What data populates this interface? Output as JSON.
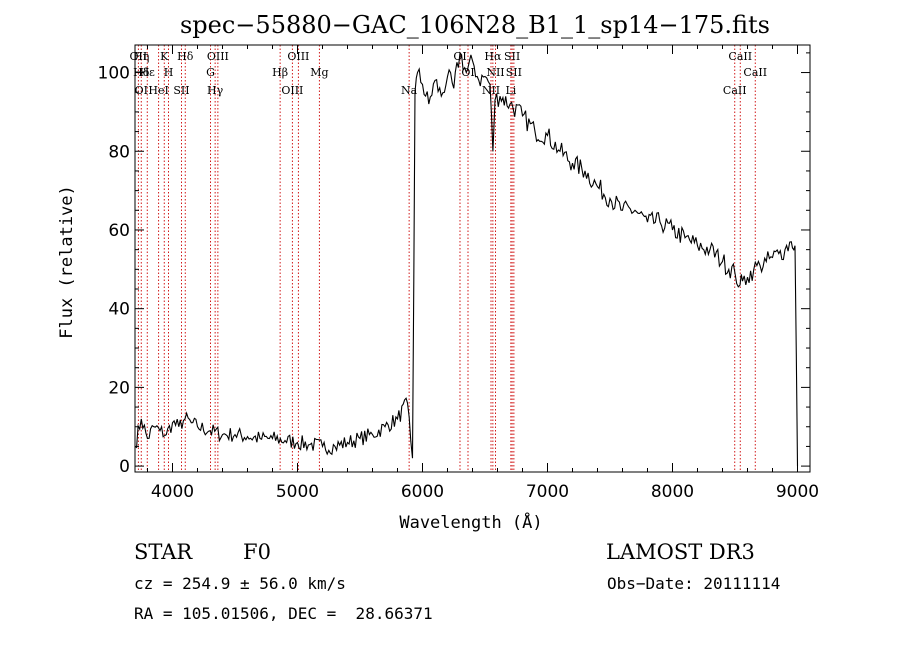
{
  "chart_data": {
    "type": "line",
    "title": "spec−55880−GAC_106N28_B1_1_sp14−175.fits",
    "xlabel": "Wavelength (Å)",
    "ylabel": "Flux (relative)",
    "xlim": [
      3700,
      9100
    ],
    "ylim": [
      -1.5,
      107
    ],
    "xticks": [
      4000,
      5000,
      6000,
      7000,
      8000,
      9000
    ],
    "yticks": [
      0,
      20,
      40,
      60,
      80,
      100
    ],
    "grid": false,
    "line_color": "#000000",
    "marker_color": "#cc0000",
    "series": [
      {
        "x": [
          3700,
          3750,
          3800,
          3850,
          3900,
          3950,
          4000,
          4050,
          4100,
          4150,
          4200,
          4300,
          4400,
          4500,
          4600,
          4700,
          4800,
          4900,
          5000,
          5100,
          5200,
          5300,
          5400,
          5500,
          5600,
          5700,
          5800,
          5880,
          5920,
          5940,
          5960,
          6000,
          6050,
          6100,
          6150,
          6200,
          6250,
          6300,
          6350,
          6400,
          6450,
          6500,
          6540,
          6563,
          6580,
          6620,
          6700,
          6800,
          6900,
          7000,
          7100,
          7200,
          7300,
          7400,
          7500,
          7600,
          7700,
          7800,
          7900,
          8000,
          8100,
          8200,
          8300,
          8400,
          8500,
          8540,
          8560,
          8600,
          8650,
          8700,
          8750,
          8800,
          8850,
          8900,
          8950,
          8980,
          9000
        ],
        "y": [
          5,
          12,
          7,
          10,
          9,
          8,
          11,
          10,
          12,
          11,
          10,
          9,
          8,
          8,
          7.5,
          7,
          7,
          6.5,
          6,
          5.5,
          5,
          5,
          6,
          7,
          8,
          10,
          12,
          16,
          2,
          95,
          100,
          97,
          92,
          98,
          94,
          99,
          96,
          105,
          100,
          103,
          98,
          99,
          97,
          80,
          93,
          94,
          92,
          89,
          85,
          84,
          80,
          77,
          75,
          71,
          68,
          65,
          65,
          62,
          62,
          60,
          58,
          56,
          55,
          52,
          49,
          46,
          47,
          48,
          50,
          51,
          52,
          53,
          54,
          55,
          57,
          56,
          0
        ]
      }
    ],
    "line_markers": [
      {
        "wl": 3727,
        "labels": [
          "OII"
        ]
      },
      {
        "wl": 3750,
        "labels": [
          "Hδ",
          "OI",
          "Hη"
        ]
      },
      {
        "wl": 3798,
        "labels": [
          "Hε"
        ]
      },
      {
        "wl": 3889,
        "labels": [
          "HeI"
        ]
      },
      {
        "wl": 3934,
        "labels": [
          "K"
        ]
      },
      {
        "wl": 3968,
        "labels": [
          "H"
        ]
      },
      {
        "wl": 4072,
        "labels": [
          "SII"
        ]
      },
      {
        "wl": 4102,
        "labels": [
          "Hδ"
        ]
      },
      {
        "wl": 4304,
        "labels": [
          "G"
        ]
      },
      {
        "wl": 4341,
        "labels": [
          "Hγ"
        ]
      },
      {
        "wl": 4363,
        "labels": [
          "OIII"
        ]
      },
      {
        "wl": 4861,
        "labels": [
          "Hβ"
        ]
      },
      {
        "wl": 4959,
        "labels": [
          "OIII"
        ]
      },
      {
        "wl": 5007,
        "labels": [
          "OIII"
        ]
      },
      {
        "wl": 5175,
        "labels": [
          "Mg"
        ]
      },
      {
        "wl": 5893,
        "labels": [
          "Na"
        ]
      },
      {
        "wl": 6300,
        "labels": [
          "OI"
        ]
      },
      {
        "wl": 6364,
        "labels": [
          "OI"
        ]
      },
      {
        "wl": 6548,
        "labels": [
          "NII"
        ]
      },
      {
        "wl": 6563,
        "labels": [
          "Hα"
        ]
      },
      {
        "wl": 6584,
        "labels": [
          "NII"
        ]
      },
      {
        "wl": 6707,
        "labels": [
          "Li"
        ]
      },
      {
        "wl": 6717,
        "labels": [
          "SII"
        ]
      },
      {
        "wl": 6731,
        "labels": [
          "SII"
        ]
      },
      {
        "wl": 8498,
        "labels": [
          "CaII"
        ]
      },
      {
        "wl": 8542,
        "labels": [
          "CaII"
        ]
      },
      {
        "wl": 8662,
        "labels": [
          "CaII"
        ]
      }
    ]
  },
  "info": {
    "object_class": "STAR",
    "subclass": "F0",
    "survey": "LAMOST DR3",
    "cz": "cz = 254.9 ± 56.0 km/s",
    "obs_date": "Obs−Date: 20111114",
    "radec": "RA = 105.01506, DEC =  28.66371"
  }
}
